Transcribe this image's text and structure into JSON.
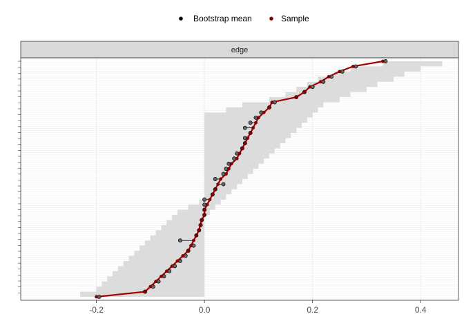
{
  "chart_data": {
    "type": "line",
    "facet_label": "edge",
    "legend": {
      "position": "top",
      "entries": [
        {
          "name": "Bootstrap mean",
          "color": "#000000"
        },
        {
          "name": "Sample",
          "color": "#8b0000"
        }
      ]
    },
    "xlim": [
      -0.34,
      0.47
    ],
    "x_ticks": [
      -0.2,
      0.0,
      0.2,
      0.4
    ],
    "x_tick_labels": [
      "-0.2",
      "0.0",
      "0.2",
      "0.4"
    ],
    "n_edges": 120,
    "grid": true,
    "colors": {
      "ribbon": "#dcdcdc",
      "sample_line": "#a50000",
      "sample_point": "#8b0000",
      "bootstrap_point": "#555555",
      "panel_strip": "#d9d9d9"
    },
    "sample": [
      0.33,
      0.275,
      0.25,
      0.23,
      0.215,
      0.195,
      0.185,
      0.17,
      0.125,
      0.12,
      0.11,
      0.1,
      0.095,
      0.09,
      0.085,
      0.08,
      0.075,
      0.07,
      0.065,
      0.06,
      0.05,
      0.045,
      0.04,
      0.03,
      0.025,
      0.02,
      0.015,
      0.01,
      0.005,
      0.0,
      0.0,
      -0.005,
      -0.008,
      -0.01,
      -0.015,
      -0.02,
      -0.025,
      -0.03,
      -0.04,
      -0.05,
      -0.06,
      -0.07,
      -0.08,
      -0.09,
      -0.1,
      -0.11,
      -0.2
    ],
    "bootstrap_mean": [
      0.335,
      0.28,
      0.255,
      0.235,
      0.22,
      0.2,
      0.185,
      0.17,
      0.13,
      0.12,
      0.105,
      0.095,
      0.085,
      0.075,
      0.085,
      0.075,
      0.075,
      0.07,
      0.06,
      0.055,
      0.045,
      0.04,
      0.035,
      0.02,
      0.035,
      0.02,
      0.015,
      0.0,
      0.0,
      0.0,
      0.0,
      -0.005,
      -0.007,
      -0.01,
      -0.015,
      -0.045,
      -0.02,
      -0.03,
      -0.035,
      -0.045,
      -0.055,
      -0.065,
      -0.075,
      -0.085,
      -0.095,
      -0.11,
      -0.195
    ],
    "ci_lower": [
      0.33,
      0.27,
      0.24,
      0.21,
      0.19,
      0.17,
      0.15,
      0.12,
      0.07,
      0.04,
      0.0,
      0.0,
      0.0,
      0.0,
      0.0,
      0.0,
      0.0,
      0.0,
      0.0,
      0.0,
      0.0,
      0.0,
      0.0,
      0.0,
      0.0,
      0.0,
      0.0,
      -0.01,
      -0.03,
      -0.05,
      -0.06,
      -0.07,
      -0.08,
      -0.09,
      -0.1,
      -0.11,
      -0.12,
      -0.13,
      -0.14,
      -0.15,
      -0.16,
      -0.17,
      -0.18,
      -0.19,
      -0.2,
      -0.23,
      -0.29
    ],
    "ci_upper": [
      0.44,
      0.4,
      0.37,
      0.35,
      0.32,
      0.3,
      0.27,
      0.25,
      0.22,
      0.21,
      0.2,
      0.19,
      0.18,
      0.17,
      0.16,
      0.15,
      0.14,
      0.13,
      0.12,
      0.11,
      0.1,
      0.09,
      0.08,
      0.07,
      0.06,
      0.05,
      0.04,
      0.03,
      0.02,
      0.01,
      0.0,
      0.0,
      0.0,
      0.0,
      0.0,
      0.0,
      0.0,
      0.0,
      0.0,
      0.0,
      0.0,
      0.0,
      0.0,
      0.0,
      0.0,
      0.0,
      0.0
    ]
  }
}
